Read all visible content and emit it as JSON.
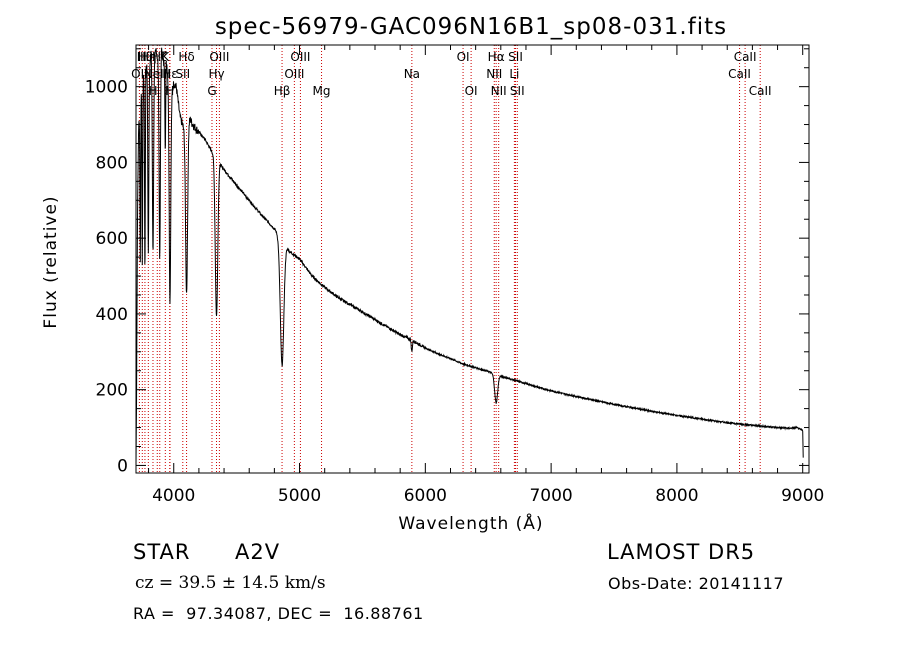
{
  "chart_data": {
    "type": "line",
    "title": "spec-56979-GAC096N16B1_sp08-031.fits",
    "xlabel": "Wavelength (Å)",
    "ylabel": "Flux (relative)",
    "xlim": [
      3700,
      9050
    ],
    "ylim": [
      -20,
      1110
    ],
    "xticks": [
      4000,
      5000,
      6000,
      7000,
      8000,
      9000
    ],
    "yticks": [
      0,
      200,
      400,
      600,
      800,
      1000
    ],
    "grid": false,
    "line_color": "#000000",
    "marker_color": "#cc0000",
    "spectrum_knots": [
      [
        3700,
        0
      ],
      [
        3704,
        160
      ],
      [
        3712,
        660
      ],
      [
        3720,
        880
      ],
      [
        3730,
        950
      ],
      [
        3740,
        1010
      ],
      [
        3750,
        1050
      ],
      [
        3770,
        1010
      ],
      [
        3780,
        1060
      ],
      [
        3800,
        1040
      ],
      [
        3820,
        1090
      ],
      [
        3840,
        1060
      ],
      [
        3860,
        1100
      ],
      [
        3880,
        1050
      ],
      [
        3900,
        1110
      ],
      [
        3920,
        1060
      ],
      [
        3940,
        1080
      ],
      [
        3960,
        1000
      ],
      [
        3980,
        970
      ],
      [
        4000,
        1010
      ],
      [
        4020,
        1000
      ],
      [
        4050,
        920
      ],
      [
        4080,
        890
      ],
      [
        4100,
        905
      ],
      [
        4130,
        915
      ],
      [
        4150,
        900
      ],
      [
        4200,
        880
      ],
      [
        4250,
        860
      ],
      [
        4300,
        830
      ],
      [
        4350,
        810
      ],
      [
        4380,
        790
      ],
      [
        4450,
        760
      ],
      [
        4500,
        740
      ],
      [
        4600,
        700
      ],
      [
        4700,
        660
      ],
      [
        4800,
        625
      ],
      [
        4870,
        590
      ],
      [
        4920,
        565
      ],
      [
        5000,
        545
      ],
      [
        5100,
        500
      ],
      [
        5200,
        470
      ],
      [
        5300,
        445
      ],
      [
        5400,
        425
      ],
      [
        5500,
        405
      ],
      [
        5600,
        385
      ],
      [
        5700,
        365
      ],
      [
        5800,
        345
      ],
      [
        5900,
        330
      ],
      [
        6000,
        310
      ],
      [
        6100,
        295
      ],
      [
        6200,
        282
      ],
      [
        6300,
        268
      ],
      [
        6400,
        258
      ],
      [
        6500,
        248
      ],
      [
        6600,
        236
      ],
      [
        6700,
        226
      ],
      [
        6800,
        216
      ],
      [
        6900,
        206
      ],
      [
        7000,
        197
      ],
      [
        7200,
        182
      ],
      [
        7400,
        168
      ],
      [
        7600,
        155
      ],
      [
        7800,
        143
      ],
      [
        8000,
        132
      ],
      [
        8200,
        122
      ],
      [
        8400,
        113
      ],
      [
        8600,
        106
      ],
      [
        8800,
        100
      ],
      [
        8900,
        98
      ],
      [
        8950,
        100
      ],
      [
        9000,
        92
      ],
      [
        9005,
        5
      ]
    ],
    "absorption_features": [
      {
        "center": 3734,
        "width": 3,
        "depth": 430
      },
      {
        "center": 3750,
        "width": 3,
        "depth": 520
      },
      {
        "center": 3771,
        "width": 3,
        "depth": 500
      },
      {
        "center": 3798,
        "width": 4,
        "depth": 480
      },
      {
        "center": 3835,
        "width": 5,
        "depth": 500
      },
      {
        "center": 3889,
        "width": 5,
        "depth": 530
      },
      {
        "center": 3933,
        "width": 3,
        "depth": 250
      },
      {
        "center": 3970,
        "width": 6,
        "depth": 550
      },
      {
        "center": 4102,
        "width": 8,
        "depth": 450
      },
      {
        "center": 4340,
        "width": 10,
        "depth": 420
      },
      {
        "center": 4861,
        "width": 14,
        "depth": 330
      },
      {
        "center": 5890,
        "width": 3,
        "depth": 25
      },
      {
        "center": 5896,
        "width": 3,
        "depth": 20
      },
      {
        "center": 6563,
        "width": 12,
        "depth": 75
      }
    ],
    "lines": [
      {
        "wl": 3727,
        "label": "OII",
        "row": 1
      },
      {
        "wl": 3750,
        "label": "H",
        "row": 0
      },
      {
        "wl": 3771,
        "label": "Hθ",
        "row": 0
      },
      {
        "wl": 3798,
        "label": "Hη",
        "row": 0
      },
      {
        "wl": 3835,
        "label": "H",
        "row": 2
      },
      {
        "wl": 3869,
        "label": "NeIII",
        "row": 1
      },
      {
        "wl": 3889,
        "label": "Hζ",
        "row": 0
      },
      {
        "wl": 3933,
        "label": "K",
        "row": 0
      },
      {
        "wl": 3968,
        "label": "H",
        "row": 2
      },
      {
        "wl": 3970,
        "label": "Hε",
        "row": 1
      },
      {
        "wl": 4072,
        "label": "SII",
        "row": 1
      },
      {
        "wl": 4102,
        "label": "Hδ",
        "row": 0
      },
      {
        "wl": 4304,
        "label": "G",
        "row": 2
      },
      {
        "wl": 4340,
        "label": "Hγ",
        "row": 1
      },
      {
        "wl": 4363,
        "label": "OIII",
        "row": 0
      },
      {
        "wl": 4861,
        "label": "Hβ",
        "row": 2
      },
      {
        "wl": 4959,
        "label": "OIII",
        "row": 1
      },
      {
        "wl": 5007,
        "label": "OIII",
        "row": 0
      },
      {
        "wl": 5175,
        "label": "Mg",
        "row": 2
      },
      {
        "wl": 5893,
        "label": "Na",
        "row": 1
      },
      {
        "wl": 6300,
        "label": "OI",
        "row": 0
      },
      {
        "wl": 6364,
        "label": "OI",
        "row": 2
      },
      {
        "wl": 6548,
        "label": "NII",
        "row": 1
      },
      {
        "wl": 6563,
        "label": "Hα",
        "row": 0
      },
      {
        "wl": 6583,
        "label": "NII",
        "row": 2
      },
      {
        "wl": 6708,
        "label": "Li",
        "row": 1
      },
      {
        "wl": 6717,
        "label": "SII",
        "row": 0
      },
      {
        "wl": 6731,
        "label": "SII",
        "row": 2
      },
      {
        "wl": 8498,
        "label": "CaII",
        "row": 1
      },
      {
        "wl": 8542,
        "label": "CaII",
        "row": 0
      },
      {
        "wl": 8662,
        "label": "CaII",
        "row": 2
      }
    ]
  },
  "info": {
    "class_label": "STAR",
    "subclass": "A2V",
    "survey": "LAMOST DR5",
    "cz_text": "cz = 39.5 ± 14.5 km/s",
    "obs_date_text": "Obs-Date: 20141117",
    "coords_text": "RA =  97.34087, DEC =  16.88761"
  }
}
